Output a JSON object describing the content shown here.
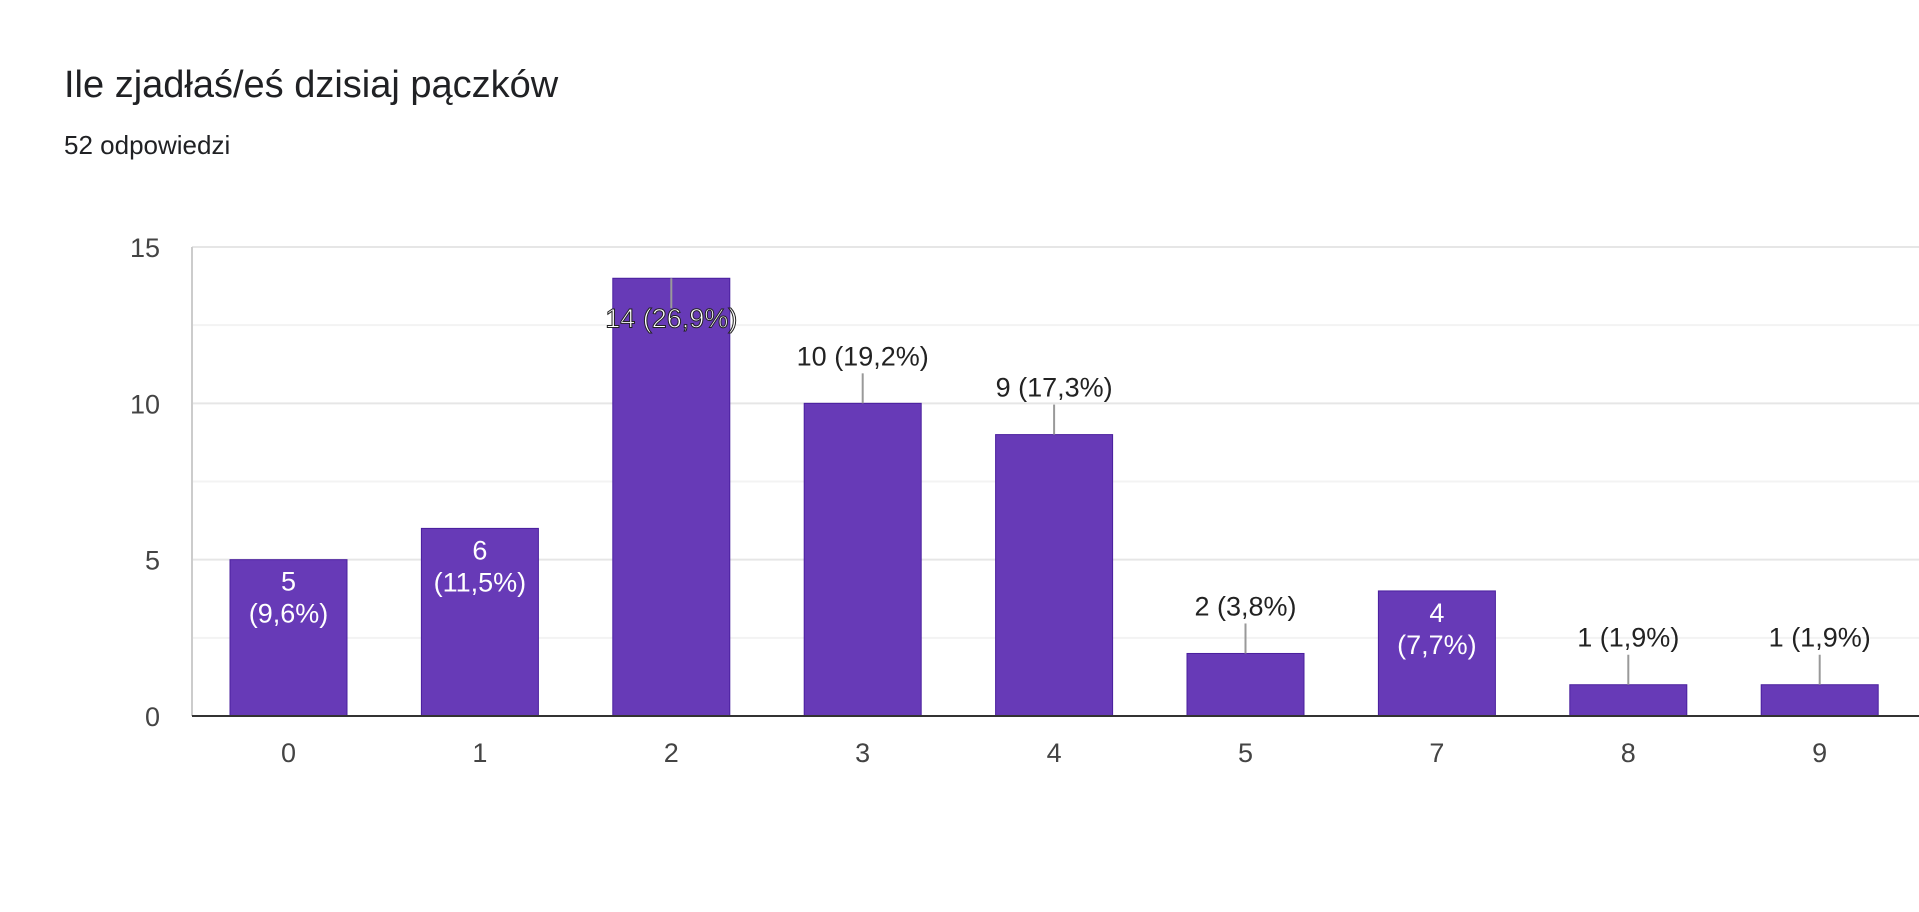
{
  "header": {
    "title": "Ile zjadłaś/eś dzisiaj pączków",
    "subtitle": "52 odpowiedzi"
  },
  "colors": {
    "bar": "#673ab7",
    "grid": "#ebebeb",
    "axis": "#333333",
    "label_inside": "#ffffff",
    "label_outside": "#222222",
    "leader": "#999999"
  },
  "chart_data": {
    "type": "bar",
    "title": "Ile zjadłaś/eś dzisiaj pączków",
    "subtitle": "52 odpowiedzi",
    "xlabel": "",
    "ylabel": "",
    "categories": [
      "0",
      "1",
      "2",
      "3",
      "4",
      "5",
      "7",
      "8",
      "9"
    ],
    "values": [
      5,
      6,
      14,
      10,
      9,
      2,
      4,
      1,
      1
    ],
    "data_labels": [
      "5 (9,6%)",
      "6 (11,5%)",
      "14 (26,9%)",
      "10 (19,2%)",
      "9 (17,3%)",
      "2 (3,8%)",
      "4 (7,7%)",
      "1 (1,9%)",
      "1 (1,9%)"
    ],
    "label_positions": [
      "inside",
      "inside",
      "inside",
      "outside",
      "outside",
      "outside",
      "inside",
      "outside",
      "outside"
    ],
    "ylim": [
      0,
      15
    ],
    "yticks": [
      "0",
      "5",
      "10",
      "15"
    ],
    "grid": true
  }
}
